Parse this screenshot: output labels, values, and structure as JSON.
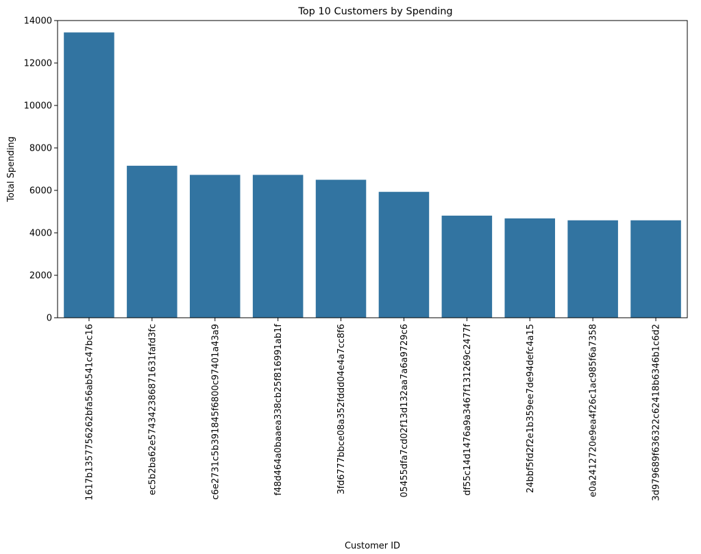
{
  "chart_data": {
    "type": "bar",
    "title": "Top 10 Customers by Spending",
    "xlabel": "Customer ID",
    "ylabel": "Total Spending",
    "ylim": [
      0,
      14000
    ],
    "yticks": [
      0,
      2000,
      4000,
      6000,
      8000,
      10000,
      12000,
      14000
    ],
    "categories": [
      "1617b1357756262bfa56ab541c47bc16",
      "ec5b2ba62e574342386871631fafd3fc",
      "c6e2731c5b391845f6800c97401a43a9",
      "f48d464a0baaea338cb25f816991ab1f",
      "3fd6777bbce08a352fddd04e4a7cc8f6",
      "05455dfa7cd02f13d132aa7a6a9729c6",
      "df55c14d1476a9a3467f131269c2477f",
      "24bbf5fd2f2e1b359ee7de94defc4a15",
      "e0a2412720e9ea4f26c1ac985f6a7358",
      "3d979689f636322c62418b6346b1c6d2"
    ],
    "values": [
      13440,
      7160,
      6730,
      6730,
      6500,
      5930,
      4810,
      4680,
      4590,
      4590
    ],
    "bar_color": "#3274a1",
    "grid": false
  }
}
